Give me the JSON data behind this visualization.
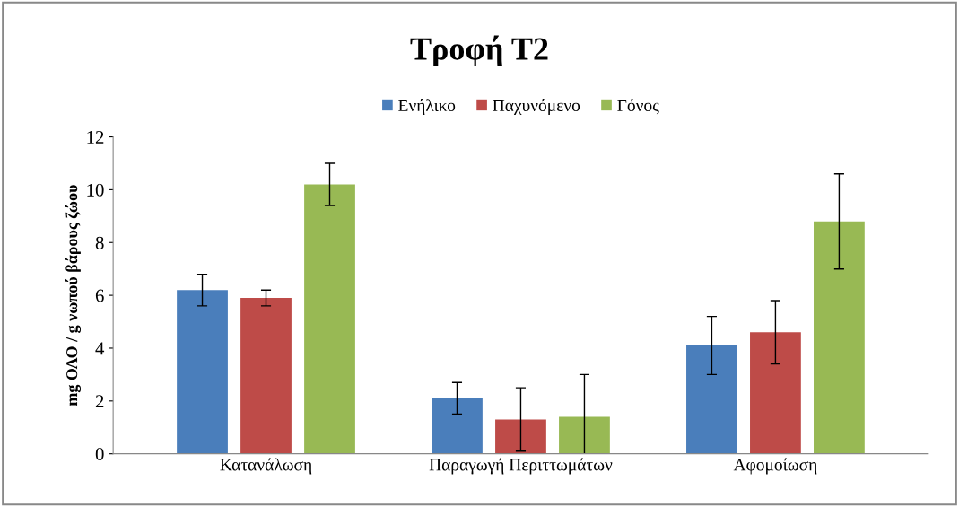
{
  "chart_data": {
    "type": "bar",
    "title": "Τροφή Τ2",
    "ylabel": "mg ΟΛΟ / g νωπού βάρους ζώου",
    "categories": [
      "Κατανάλωση",
      "Παραγωγή Περιττωμάτων",
      "Αφομοίωση"
    ],
    "series": [
      {
        "name": "Ενήλικο",
        "color": "#4a7ebb",
        "values": [
          6.2,
          2.1,
          4.1
        ],
        "errors": [
          0.6,
          0.6,
          1.1
        ]
      },
      {
        "name": "Παχυνόμενο",
        "color": "#be4b48",
        "values": [
          5.9,
          1.3,
          4.6
        ],
        "errors": [
          0.3,
          1.2,
          1.2
        ]
      },
      {
        "name": "Γόνος",
        "color": "#98b954",
        "values": [
          10.2,
          1.4,
          8.8
        ],
        "errors": [
          0.8,
          1.6,
          1.8
        ]
      }
    ],
    "ylim": [
      0,
      12
    ],
    "yticks": [
      0,
      2,
      4,
      6,
      8,
      10,
      12
    ],
    "grid": false,
    "legend": "top"
  }
}
